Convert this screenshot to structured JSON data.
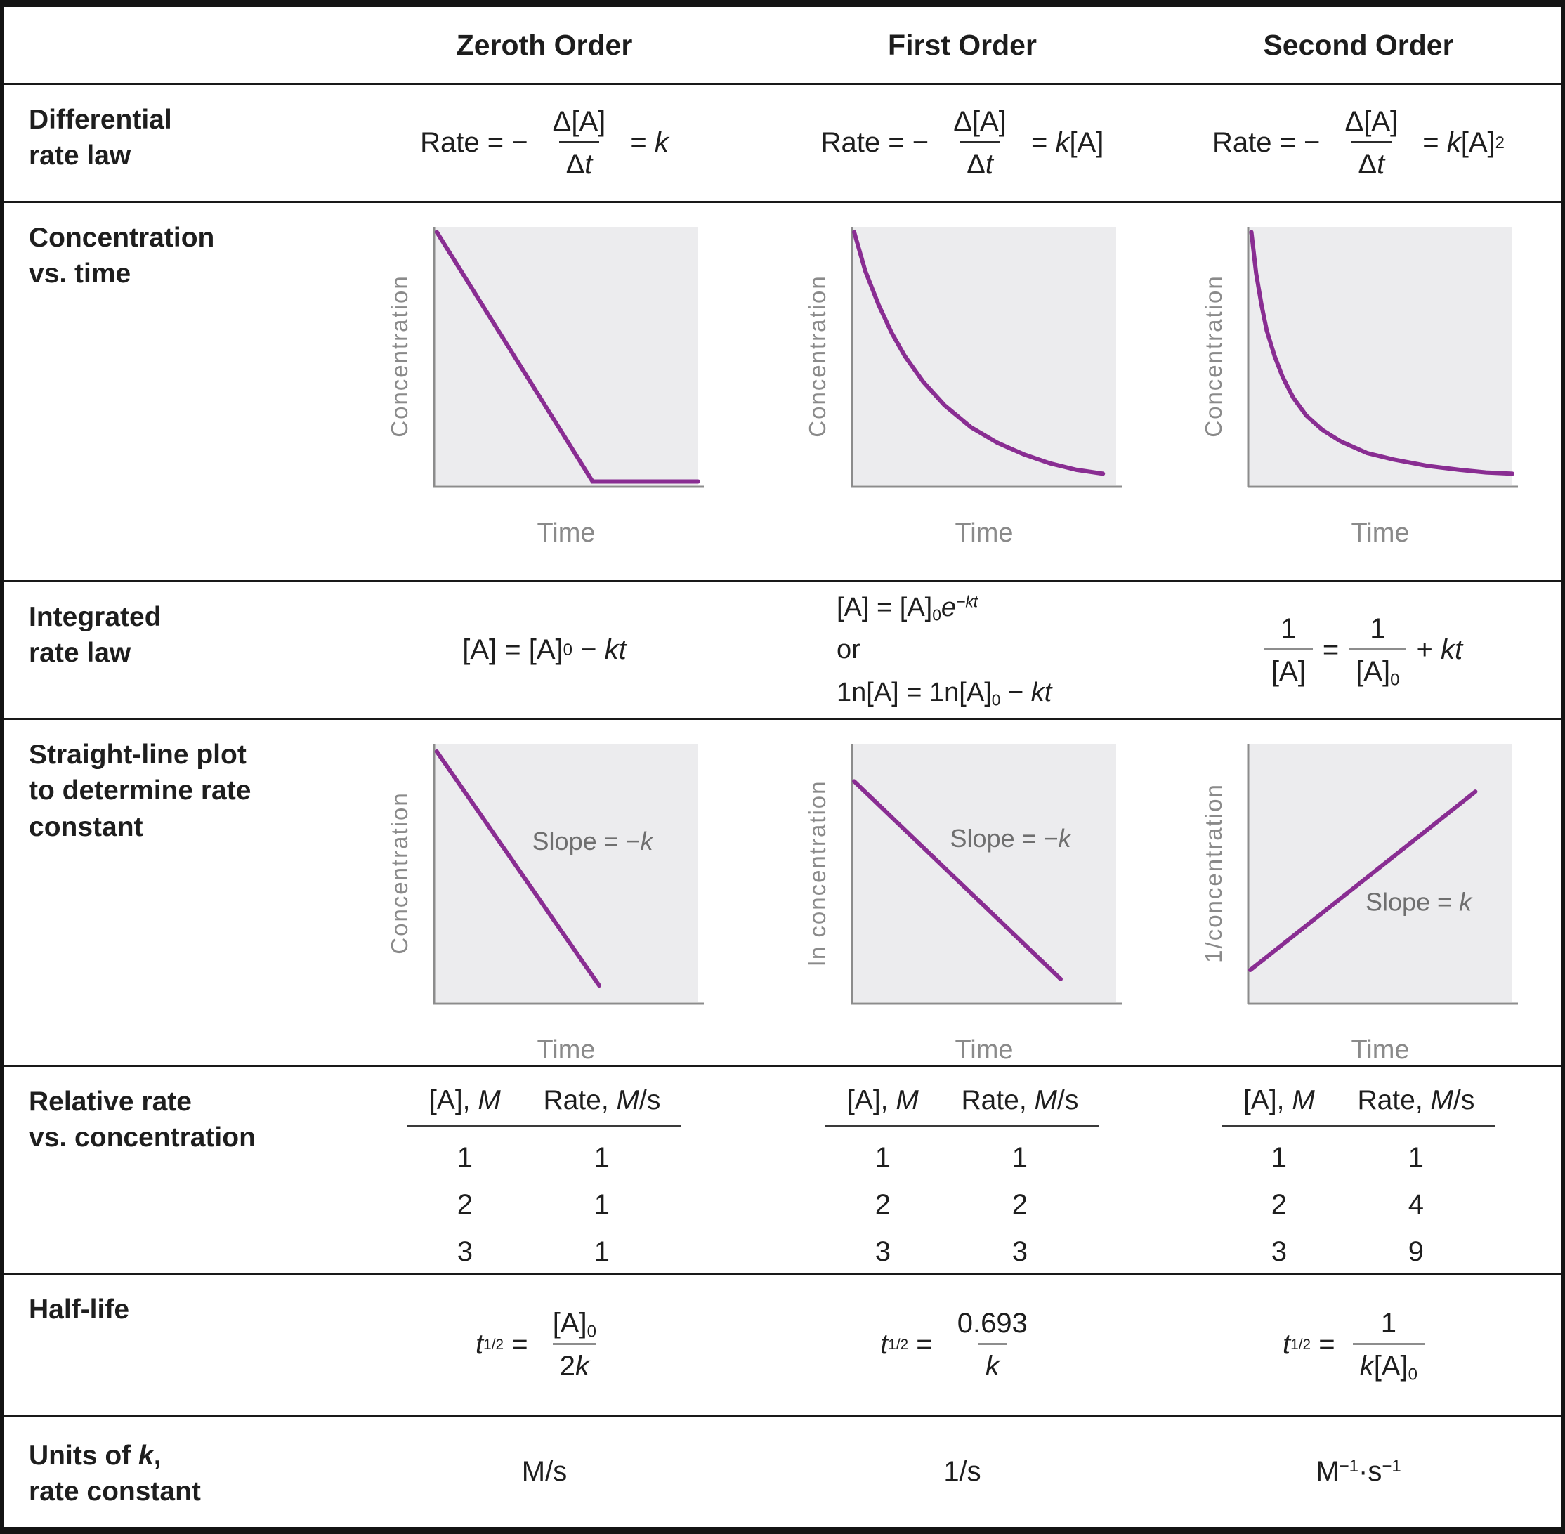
{
  "colors": {
    "line": "#892d92",
    "plot_bg": "#ececee",
    "axis": "#8c8c8c",
    "axis_label": "#8a8a8a",
    "slope_label": "#6f6f6f",
    "text": "#1e1e1e"
  },
  "header": {
    "zeroth": "Zeroth Order",
    "first": "First Order",
    "second": "Second Order"
  },
  "labels": {
    "differential": [
      "Differential",
      "rate law"
    ],
    "concentration": [
      "Concentration",
      "vs. time"
    ],
    "integrated": [
      "Integrated",
      "rate law"
    ],
    "straight": [
      "Straight-line plot",
      "to determine rate",
      "constant"
    ],
    "relative": [
      "Relative rate",
      "vs. concentration"
    ],
    "halflife": [
      "Half-life"
    ],
    "units": {
      "pre": "Units of ",
      "k": "k",
      "post": ",",
      "line2": "rate constant"
    }
  },
  "diff": {
    "zeroth": {
      "pre": "Rate = − ",
      "num": "Δ[A]",
      "den_delta": "Δ",
      "den_t": "t",
      "eq": " = ",
      "k": "k",
      "rest": ""
    },
    "first": {
      "pre": "Rate = − ",
      "num": "Δ[A]",
      "den_delta": "Δ",
      "den_t": "t",
      "eq": " = ",
      "k": "k",
      "rest": "[A]"
    },
    "second": {
      "pre": "Rate = − ",
      "num": "Δ[A]",
      "den_delta": "Δ",
      "den_t": "t",
      "eq": " = ",
      "k": "k",
      "rest": "[A]",
      "sup": "2"
    }
  },
  "integrated": {
    "zeroth": {
      "pre": "[A] = [A]",
      "sub": "0",
      "mid": " − ",
      "kt": "kt"
    },
    "first": {
      "l1_pre": "[A] = [A]",
      "l1_sub": "0",
      "l1_e": "e",
      "l1_sup": "−kt",
      "or": "or",
      "l2_pre": "1n[A] = 1n[A]",
      "l2_sub": "0",
      "l2_mid": " − ",
      "l2_kt": "kt"
    },
    "second": {
      "n1": "1",
      "d1": "[A]",
      "eq": "=",
      "n2": "1",
      "d2": "[A]",
      "d2_sub": "0",
      "plus": "+ ",
      "kt": "kt"
    }
  },
  "relative": {
    "headers": {
      "a": "[A], ",
      "a_it": "M",
      "rate": "Rate, ",
      "rate_it": "M",
      "rate_unit": "/s"
    },
    "zeroth": {
      "rows": [
        [
          "1",
          "1"
        ],
        [
          "2",
          "1"
        ],
        [
          "3",
          "1"
        ]
      ]
    },
    "first": {
      "rows": [
        [
          "1",
          "1"
        ],
        [
          "2",
          "2"
        ],
        [
          "3",
          "3"
        ]
      ]
    },
    "second": {
      "rows": [
        [
          "1",
          "1"
        ],
        [
          "2",
          "4"
        ],
        [
          "3",
          "9"
        ]
      ]
    }
  },
  "halflife": {
    "zeroth": {
      "t": "t",
      "sub": "1/2",
      "eq": " = ",
      "num": "[A]",
      "num_sub": "0",
      "den_pre": "2",
      "den_k": "k"
    },
    "first": {
      "t": "t",
      "sub": "1/2",
      "eq": " = ",
      "num": "0.693",
      "den_k": "k"
    },
    "second": {
      "t": "t",
      "sub": "1/2",
      "eq": " = ",
      "num": "1",
      "den_k": "k",
      "den_rest": "[A]",
      "den_sub": "0"
    }
  },
  "units": {
    "zeroth": "M/s",
    "first": "1/s",
    "second": {
      "m": "M",
      "s1": "−1",
      "dot": "·s",
      "s2": "−1"
    }
  },
  "chart_data": [
    {
      "id": "zeroth-concentration-vs-time",
      "type": "line",
      "column": "Zeroth Order",
      "xlabel": "Time",
      "ylabel": "Concentration",
      "grid": false,
      "description": "linear decrease to zero, then constant at zero",
      "points": [
        [
          0.01,
          0.02
        ],
        [
          0.6,
          0.985
        ],
        [
          1.0,
          0.985
        ]
      ]
    },
    {
      "id": "first-concentration-vs-time",
      "type": "line",
      "column": "First Order",
      "xlabel": "Time",
      "ylabel": "Concentration",
      "grid": false,
      "description": "exponential decay",
      "points": [
        [
          0.008,
          0.02
        ],
        [
          0.05,
          0.17
        ],
        [
          0.1,
          0.3
        ],
        [
          0.15,
          0.41
        ],
        [
          0.2,
          0.5
        ],
        [
          0.27,
          0.6
        ],
        [
          0.35,
          0.69
        ],
        [
          0.45,
          0.775
        ],
        [
          0.55,
          0.835
        ],
        [
          0.65,
          0.88
        ],
        [
          0.75,
          0.915
        ],
        [
          0.85,
          0.94
        ],
        [
          0.95,
          0.955
        ]
      ]
    },
    {
      "id": "second-concentration-vs-time",
      "type": "line",
      "column": "Second Order",
      "xlabel": "Time",
      "ylabel": "Concentration",
      "grid": false,
      "description": "hyperbolic decay, steeper initial drop with long flat tail",
      "points": [
        [
          0.012,
          0.02
        ],
        [
          0.03,
          0.18
        ],
        [
          0.05,
          0.3
        ],
        [
          0.07,
          0.4
        ],
        [
          0.1,
          0.5
        ],
        [
          0.13,
          0.58
        ],
        [
          0.17,
          0.66
        ],
        [
          0.22,
          0.73
        ],
        [
          0.28,
          0.785
        ],
        [
          0.35,
          0.83
        ],
        [
          0.45,
          0.875
        ],
        [
          0.55,
          0.9
        ],
        [
          0.68,
          0.925
        ],
        [
          0.8,
          0.94
        ],
        [
          0.9,
          0.95
        ],
        [
          1.0,
          0.955
        ]
      ]
    },
    {
      "id": "zeroth-straight-line-plot",
      "type": "line",
      "column": "Zeroth Order",
      "xlabel": "Time",
      "ylabel": "Concentration",
      "grid": false,
      "description": "concentration vs time is linear with slope -k",
      "slope_label": {
        "pre": "Slope = −",
        "k": "k",
        "x": 0.6,
        "y": 0.41
      },
      "points": [
        [
          0.01,
          0.03
        ],
        [
          0.625,
          0.935
        ]
      ]
    },
    {
      "id": "first-straight-line-plot",
      "type": "line",
      "column": "First Order",
      "xlabel": "Time",
      "ylabel": "ln concentration",
      "grid": false,
      "description": "ln concentration vs time is linear with slope -k",
      "slope_label": {
        "pre": "Slope = −",
        "k": "k",
        "x": 0.6,
        "y": 0.4
      },
      "points": [
        [
          0.008,
          0.145
        ],
        [
          0.79,
          0.91
        ]
      ]
    },
    {
      "id": "second-straight-line-plot",
      "type": "line",
      "column": "Second Order",
      "xlabel": "Time",
      "ylabel": "1/concentration",
      "grid": false,
      "description": "1/concentration vs time is linear with slope +k",
      "slope_label": {
        "pre": "Slope = ",
        "k": "k",
        "x": 0.645,
        "y": 0.645
      },
      "points": [
        [
          0.008,
          0.875
        ],
        [
          0.86,
          0.185
        ]
      ]
    }
  ]
}
